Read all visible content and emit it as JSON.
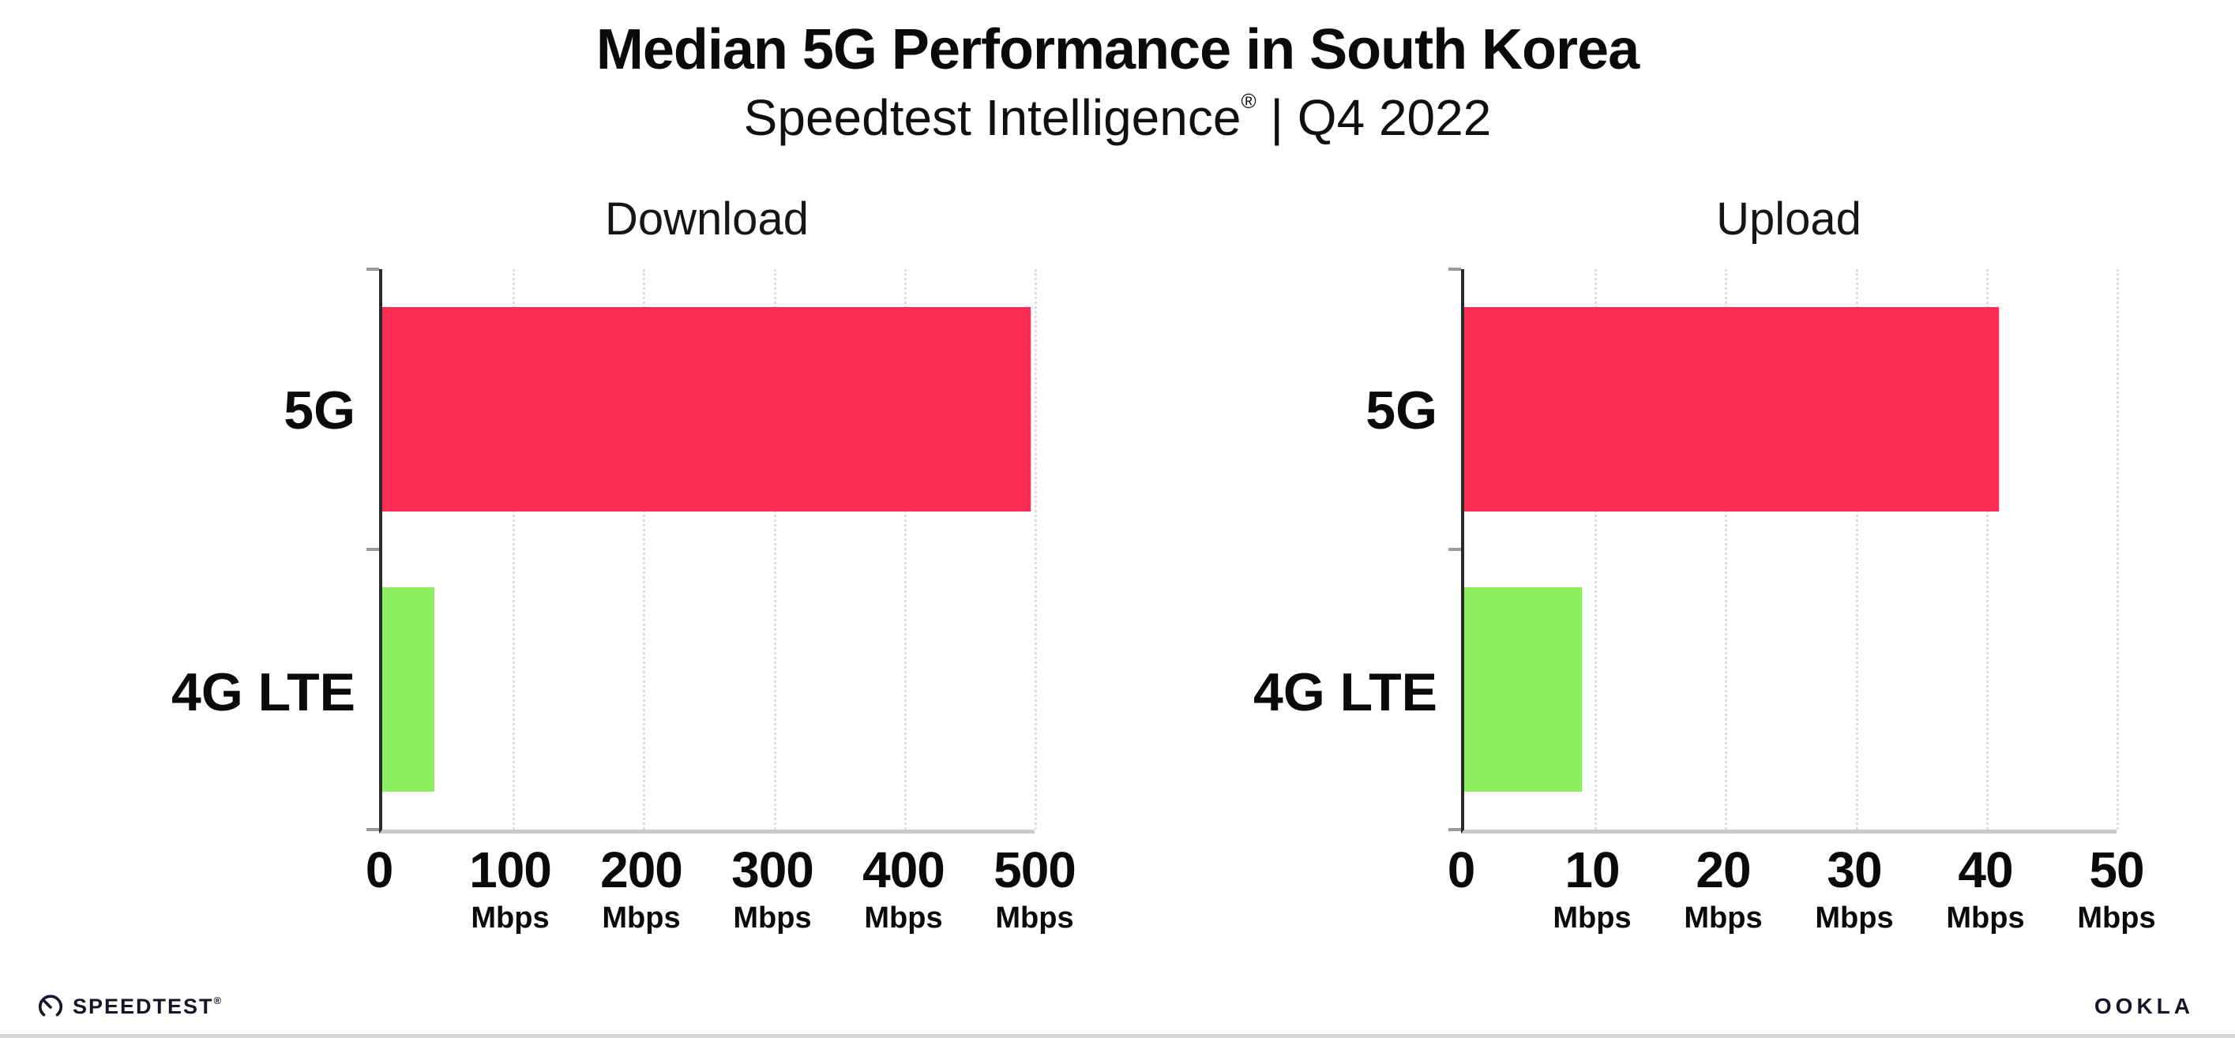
{
  "header": {
    "title": "Median 5G Performance in South Korea",
    "subtitle_brand": "Speedtest Intelligence",
    "subtitle_reg": "®",
    "subtitle_rest": " | Q4 2022"
  },
  "colors": {
    "bar_5g": "#FA2E55",
    "bar_4g_lte": "#8CEE60",
    "axis_left": "#2a2a2a",
    "axis_bottom": "#c9c9c9",
    "gridline": "#dcdcdc",
    "logo_ink": "#141526"
  },
  "chart_data": [
    {
      "type": "bar",
      "orientation": "horizontal",
      "title": "Download",
      "categories": [
        "5G",
        "4G LTE"
      ],
      "values": [
        497,
        40
      ],
      "unit": "Mbps",
      "xlim": [
        0,
        500
      ],
      "xticks": [
        0,
        100,
        200,
        300,
        400,
        500
      ],
      "grid": "dotted-vertical",
      "bar_colors": [
        "#FA2E55",
        "#8CEE60"
      ]
    },
    {
      "type": "bar",
      "orientation": "horizontal",
      "title": "Upload",
      "categories": [
        "5G",
        "4G LTE"
      ],
      "values": [
        41,
        9
      ],
      "unit": "Mbps",
      "xlim": [
        0,
        50
      ],
      "xticks": [
        0,
        10,
        20,
        30,
        40,
        50
      ],
      "grid": "dotted-vertical",
      "bar_colors": [
        "#FA2E55",
        "#8CEE60"
      ]
    }
  ],
  "footer": {
    "speedtest_label": "SPEEDTEST",
    "speedtest_mark": "®",
    "ookla_label": "OOKLA"
  }
}
